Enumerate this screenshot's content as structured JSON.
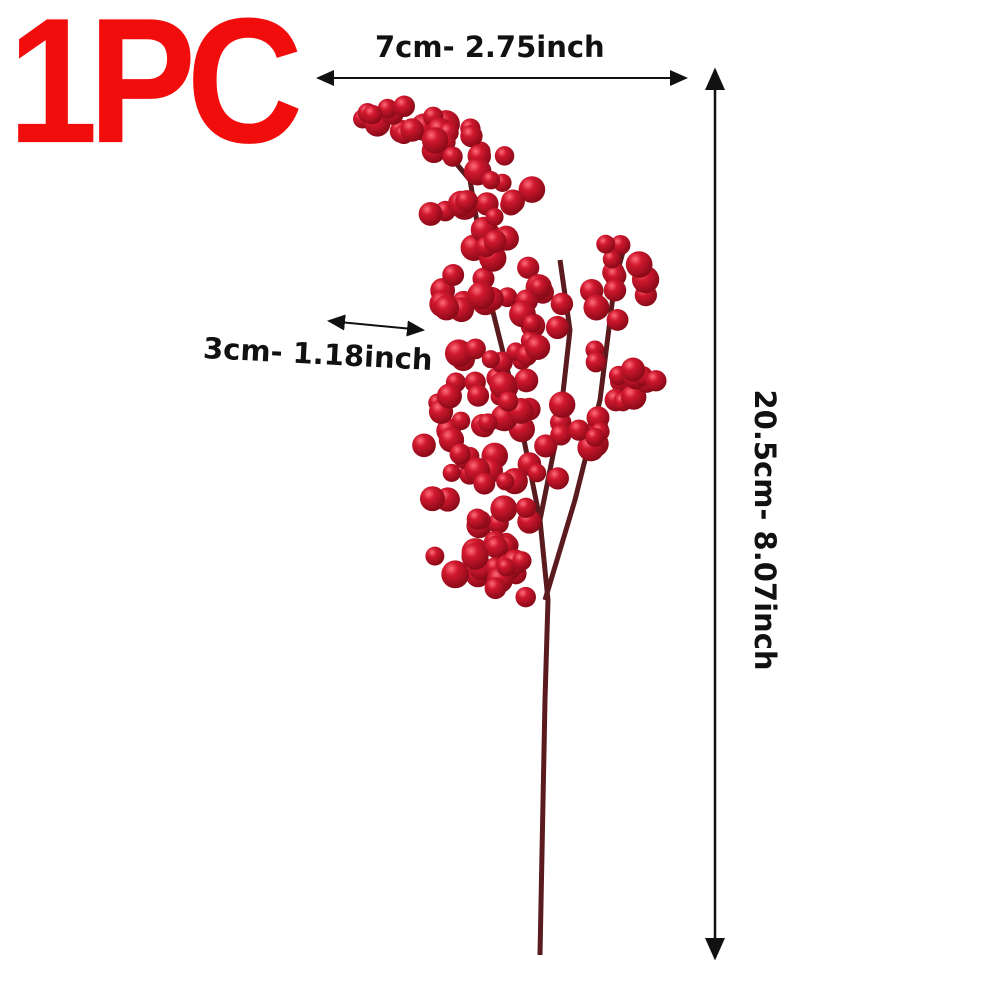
{
  "badge": {
    "text": "1PC",
    "color": "#f20d0d"
  },
  "dimensions": {
    "width": "7cm- 2.75inch",
    "depth": "3cm- 1.18inch",
    "height": "20.5cm- 8.07inch"
  },
  "product": {
    "berry_color": "#c0142a",
    "stem_color": "#5a1a1e"
  }
}
